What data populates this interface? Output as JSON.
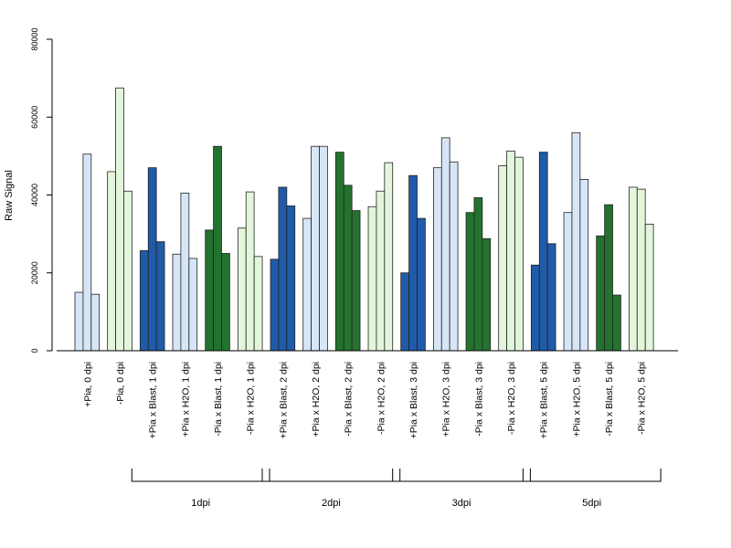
{
  "chart_data": {
    "type": "bar",
    "ylabel": "Raw Signal",
    "xlabel": "",
    "ylim": [
      0,
      80000
    ],
    "yticks": [
      0,
      20000,
      40000,
      60000,
      80000
    ],
    "colors": {
      "light_blue": "#d6e6f7",
      "dark_blue": "#1f5ba8",
      "light_green": "#e3f6dc",
      "dark_green": "#23732f"
    },
    "categories": [
      {
        "label": "+Pia, 0 dpi",
        "color": "light_blue",
        "values": [
          15000,
          50500,
          14500
        ]
      },
      {
        "label": "-Pia, 0 dpi",
        "color": "light_green",
        "values": [
          46000,
          67500,
          41000
        ]
      },
      {
        "label": "+Pia x Blast, 1 dpi",
        "color": "dark_blue",
        "values": [
          25700,
          47000,
          28000
        ]
      },
      {
        "label": "+Pia x H2O, 1 dpi",
        "color": "light_blue",
        "values": [
          24800,
          40500,
          23700
        ]
      },
      {
        "label": "-Pia x Blast, 1 dpi",
        "color": "dark_green",
        "values": [
          31000,
          52500,
          25000
        ]
      },
      {
        "label": "-Pia x H2O, 1 dpi",
        "color": "light_green",
        "values": [
          31500,
          40800,
          24200
        ]
      },
      {
        "label": "+Pia x Blast, 2 dpi",
        "color": "dark_blue",
        "values": [
          23500,
          42000,
          37200
        ]
      },
      {
        "label": "+Pia x H2O, 2 dpi",
        "color": "light_blue",
        "values": [
          34000,
          52500,
          52500
        ]
      },
      {
        "label": "-Pia x Blast, 2 dpi",
        "color": "dark_green",
        "values": [
          51000,
          42500,
          36000
        ]
      },
      {
        "label": "-Pia x H2O, 2 dpi",
        "color": "light_green",
        "values": [
          37000,
          41000,
          48300
        ]
      },
      {
        "label": "+Pia x Blast, 3 dpi",
        "color": "dark_blue",
        "values": [
          20000,
          45000,
          34000
        ]
      },
      {
        "label": "+Pia x H2O, 3 dpi",
        "color": "light_blue",
        "values": [
          47000,
          54700,
          48500
        ]
      },
      {
        "label": "-Pia x Blast, 3 dpi",
        "color": "dark_green",
        "values": [
          35500,
          39300,
          28800
        ]
      },
      {
        "label": "-Pia x H2O, 3 dpi",
        "color": "light_green",
        "values": [
          47500,
          51300,
          49700
        ]
      },
      {
        "label": "+Pia x Blast, 5 dpi",
        "color": "dark_blue",
        "values": [
          22000,
          51000,
          27500
        ]
      },
      {
        "label": "+Pia x H2O, 5 dpi",
        "color": "light_blue",
        "values": [
          35500,
          56000,
          44000
        ]
      },
      {
        "label": "-Pia x Blast, 5 dpi",
        "color": "dark_green",
        "values": [
          29500,
          37500,
          14300
        ]
      },
      {
        "label": "-Pia x H2O, 5 dpi",
        "color": "light_green",
        "values": [
          42000,
          41500,
          32500
        ]
      }
    ],
    "groups": [
      {
        "label": "1dpi",
        "start": 2,
        "end": 5
      },
      {
        "label": "2dpi",
        "start": 6,
        "end": 9
      },
      {
        "label": "3dpi",
        "start": 10,
        "end": 13
      },
      {
        "label": "5dpi",
        "start": 14,
        "end": 17
      }
    ]
  }
}
